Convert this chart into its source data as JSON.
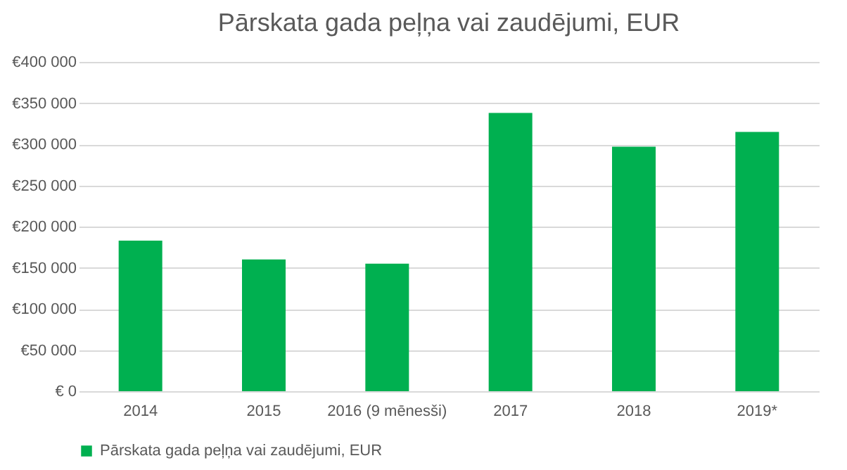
{
  "chart_data": {
    "type": "bar",
    "title": "Pārskata gada peļņa vai zaudējumi, EUR",
    "categories": [
      "2014",
      "2015",
      "2016 (9 mēnesši)",
      "2017",
      "2018",
      "2019*"
    ],
    "series": [
      {
        "name": "Pārskata gada peļņa vai zaudējumi, EUR",
        "color": "#00b050",
        "values": [
          183000,
          160000,
          155000,
          338000,
          297000,
          315000
        ]
      }
    ],
    "ylim": [
      0,
      400000
    ],
    "yticks": [
      {
        "value": 0,
        "label": "€ 0"
      },
      {
        "value": 50000,
        "label": "€50 000"
      },
      {
        "value": 100000,
        "label": "€100 000"
      },
      {
        "value": 150000,
        "label": "€150 000"
      },
      {
        "value": 200000,
        "label": "€200 000"
      },
      {
        "value": 250000,
        "label": "€250 000"
      },
      {
        "value": 300000,
        "label": "€300 000"
      },
      {
        "value": 350000,
        "label": "€350 000"
      },
      {
        "value": 400000,
        "label": "€400 000"
      }
    ],
    "grid": "y",
    "legend": "bottom"
  }
}
